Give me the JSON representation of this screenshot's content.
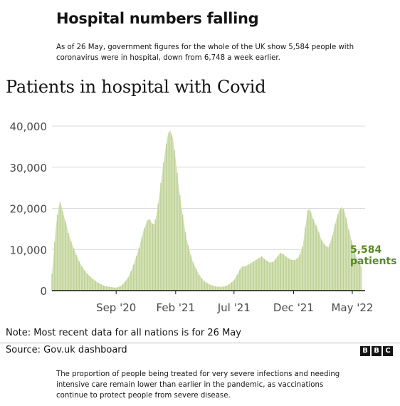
{
  "headline": "Hospital numbers falling",
  "intro": "As of 26 May, government figures for the whole of the UK show 5,584 people with coronavirus were in hospital, down from 6,748 a week earlier.",
  "note": "Note: Most recent data for all nations is for 26 May",
  "source": "Source: Gov.uk dashboard",
  "logo": {
    "letters": [
      "B",
      "B",
      "C"
    ]
  },
  "footer": "The proportion of people being treated for very severe infections and needing intensive care remain lower than earlier in the pandemic, as vaccinations continue to protect people from severe disease.",
  "colors": {
    "fill": "#d4e2b6",
    "bar": "#bccf95",
    "accent": "#588a1c",
    "grid": "#d9d9d9",
    "axis": "#141414",
    "tick": "#4a4a4a"
  },
  "chart_data": {
    "type": "area",
    "title": "Patients in hospital with Covid",
    "xlabel": "",
    "ylabel": "",
    "ylim": [
      0,
      40000
    ],
    "yticks": [
      0,
      10000,
      20000,
      30000,
      40000
    ],
    "ytick_labels": [
      "0",
      "10,000",
      "20,000",
      "30,000",
      "40,000"
    ],
    "xticks": [
      {
        "date": "2020-09-01",
        "label": "Sep '20"
      },
      {
        "date": "2021-02-01",
        "label": "Feb '21"
      },
      {
        "date": "2021-07-01",
        "label": "Jul '21"
      },
      {
        "date": "2021-12-01",
        "label": "Dec '21"
      },
      {
        "date": "2022-05-01",
        "label": "May '22"
      }
    ],
    "grid": true,
    "x_domain": [
      "2020-03-20",
      "2022-06-03"
    ],
    "annotation": {
      "value": "5,584",
      "text": "patients",
      "date": "2022-05-26",
      "y": 5584
    },
    "series": [
      {
        "points": [
          [
            "2020-03-20",
            4000
          ],
          [
            "2020-03-25",
            9500
          ],
          [
            "2020-03-30",
            15500
          ],
          [
            "2020-04-05",
            19800
          ],
          [
            "2020-04-10",
            21500
          ],
          [
            "2020-04-15",
            20000
          ],
          [
            "2020-04-20",
            18000
          ],
          [
            "2020-04-25",
            16500
          ],
          [
            "2020-05-01",
            14000
          ],
          [
            "2020-05-10",
            11500
          ],
          [
            "2020-05-20",
            9000
          ],
          [
            "2020-06-01",
            6500
          ],
          [
            "2020-06-15",
            4500
          ],
          [
            "2020-07-01",
            3000
          ],
          [
            "2020-07-15",
            2000
          ],
          [
            "2020-08-01",
            1200
          ],
          [
            "2020-08-15",
            900
          ],
          [
            "2020-09-01",
            700
          ],
          [
            "2020-09-15",
            1200
          ],
          [
            "2020-10-01",
            3000
          ],
          [
            "2020-10-15",
            6000
          ],
          [
            "2020-11-01",
            11000
          ],
          [
            "2020-11-10",
            14500
          ],
          [
            "2020-11-20",
            17000
          ],
          [
            "2020-11-25",
            17500
          ],
          [
            "2020-12-01",
            16500
          ],
          [
            "2020-12-08",
            16000
          ],
          [
            "2020-12-15",
            19000
          ],
          [
            "2020-12-22",
            24000
          ],
          [
            "2020-12-29",
            29000
          ],
          [
            "2021-01-05",
            34000
          ],
          [
            "2021-01-12",
            38000
          ],
          [
            "2021-01-18",
            39000
          ],
          [
            "2021-01-25",
            37000
          ],
          [
            "2021-02-01",
            32000
          ],
          [
            "2021-02-08",
            26000
          ],
          [
            "2021-02-15",
            21000
          ],
          [
            "2021-02-22",
            16500
          ],
          [
            "2021-03-01",
            12500
          ],
          [
            "2021-03-15",
            7500
          ],
          [
            "2021-04-01",
            4000
          ],
          [
            "2021-04-15",
            2300
          ],
          [
            "2021-05-01",
            1400
          ],
          [
            "2021-05-15",
            1000
          ],
          [
            "2021-06-01",
            900
          ],
          [
            "2021-06-15",
            1300
          ],
          [
            "2021-07-01",
            2500
          ],
          [
            "2021-07-10",
            4000
          ],
          [
            "2021-07-20",
            5800
          ],
          [
            "2021-08-01",
            6000
          ],
          [
            "2021-08-15",
            6800
          ],
          [
            "2021-09-01",
            7800
          ],
          [
            "2021-09-10",
            8300
          ],
          [
            "2021-09-20",
            7500
          ],
          [
            "2021-10-01",
            6800
          ],
          [
            "2021-10-10",
            7000
          ],
          [
            "2021-10-20",
            8200
          ],
          [
            "2021-10-28",
            9200
          ],
          [
            "2021-11-05",
            8800
          ],
          [
            "2021-11-15",
            8000
          ],
          [
            "2021-11-25",
            7500
          ],
          [
            "2021-12-05",
            7400
          ],
          [
            "2021-12-15",
            8200
          ],
          [
            "2021-12-25",
            11000
          ],
          [
            "2022-01-01",
            16000
          ],
          [
            "2022-01-06",
            19500
          ],
          [
            "2022-01-12",
            19800
          ],
          [
            "2022-01-20",
            17500
          ],
          [
            "2022-02-01",
            15000
          ],
          [
            "2022-02-10",
            12500
          ],
          [
            "2022-02-20",
            11000
          ],
          [
            "2022-03-01",
            10500
          ],
          [
            "2022-03-10",
            13000
          ],
          [
            "2022-03-20",
            17000
          ],
          [
            "2022-03-28",
            19500
          ],
          [
            "2022-04-05",
            20400
          ],
          [
            "2022-04-12",
            19000
          ],
          [
            "2022-04-20",
            15500
          ],
          [
            "2022-05-01",
            11500
          ],
          [
            "2022-05-10",
            8500
          ],
          [
            "2022-05-18",
            6748
          ],
          [
            "2022-05-26",
            5584
          ]
        ]
      }
    ]
  }
}
